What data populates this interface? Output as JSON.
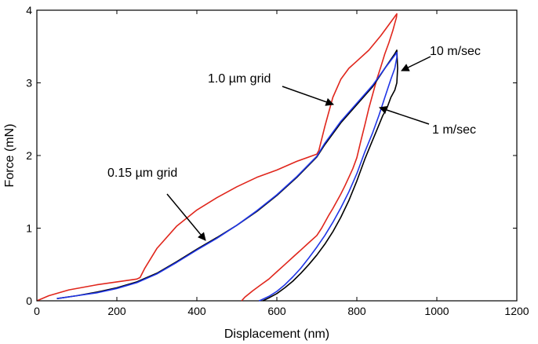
{
  "chart_data": {
    "type": "line",
    "title": "",
    "xlabel": "Displacement (nm)",
    "ylabel": "Force (mN)",
    "xlim": [
      0,
      1200
    ],
    "ylim": [
      0,
      4
    ],
    "xticks": [
      0,
      200,
      400,
      600,
      800,
      1000,
      1200
    ],
    "yticks": [
      0,
      1,
      2,
      3,
      4
    ],
    "grid": false,
    "legend": "none",
    "colors": {
      "red": "#e0261c",
      "black": "#000000",
      "blue": "#1f35e6"
    },
    "series": [
      {
        "name": "1.0 µm grid",
        "color": "#e0261c",
        "x": [
          0,
          30,
          80,
          150,
          200,
          250,
          258,
          270,
          300,
          350,
          400,
          450,
          500,
          550,
          600,
          650,
          700,
          705,
          720,
          740,
          760,
          780,
          800,
          830,
          860,
          880,
          900,
          899,
          895,
          890,
          880,
          870,
          860,
          850,
          840,
          830,
          820,
          810,
          800,
          790,
          780,
          770,
          760,
          750,
          740,
          730,
          720,
          712,
          700,
          680,
          660,
          640,
          620,
          600,
          580,
          560,
          540,
          520,
          512
        ],
        "y": [
          0,
          0.07,
          0.15,
          0.22,
          0.26,
          0.3,
          0.32,
          0.45,
          0.72,
          1.03,
          1.25,
          1.42,
          1.57,
          1.7,
          1.8,
          1.92,
          2.02,
          2.07,
          2.4,
          2.8,
          3.05,
          3.2,
          3.3,
          3.45,
          3.65,
          3.8,
          3.95,
          3.9,
          3.82,
          3.72,
          3.55,
          3.4,
          3.22,
          3.05,
          2.85,
          2.65,
          2.42,
          2.2,
          1.97,
          1.82,
          1.7,
          1.58,
          1.47,
          1.37,
          1.27,
          1.18,
          1.08,
          1.0,
          0.9,
          0.8,
          0.7,
          0.6,
          0.5,
          0.4,
          0.3,
          0.22,
          0.14,
          0.05,
          0
        ]
      },
      {
        "name": "10 m/sec",
        "color": "#000000",
        "x": [
          50,
          100,
          150,
          200,
          250,
          300,
          350,
          400,
          450,
          500,
          550,
          600,
          650,
          700,
          720,
          760,
          800,
          840,
          870,
          895,
          900,
          902,
          900,
          895,
          885,
          875,
          865,
          850,
          835,
          820,
          800,
          780,
          760,
          740,
          720,
          700,
          680,
          660,
          640,
          620,
          600,
          580,
          565
        ],
        "y": [
          0.03,
          0.07,
          0.12,
          0.18,
          0.26,
          0.38,
          0.54,
          0.71,
          0.87,
          1.04,
          1.23,
          1.45,
          1.7,
          1.98,
          2.15,
          2.45,
          2.7,
          2.95,
          3.2,
          3.4,
          3.45,
          3.2,
          3.0,
          2.9,
          2.8,
          2.65,
          2.55,
          2.35,
          2.15,
          1.95,
          1.65,
          1.38,
          1.15,
          0.95,
          0.78,
          0.63,
          0.5,
          0.38,
          0.27,
          0.18,
          0.1,
          0.04,
          0
        ]
      },
      {
        "name": "1 m/sec",
        "color": "#1f35e6",
        "x": [
          50,
          100,
          150,
          200,
          250,
          300,
          350,
          400,
          450,
          500,
          550,
          600,
          650,
          700,
          720,
          760,
          800,
          840,
          870,
          895,
          900,
          900,
          895,
          885,
          870,
          855,
          840,
          820,
          800,
          780,
          760,
          740,
          720,
          700,
          680,
          660,
          640,
          620,
          600,
          580,
          560,
          555
        ],
        "y": [
          0.03,
          0.07,
          0.11,
          0.17,
          0.25,
          0.37,
          0.53,
          0.7,
          0.86,
          1.04,
          1.24,
          1.46,
          1.71,
          1.99,
          2.17,
          2.47,
          2.72,
          2.97,
          3.2,
          3.38,
          3.42,
          3.35,
          3.2,
          3.05,
          2.8,
          2.55,
          2.32,
          2.05,
          1.75,
          1.5,
          1.28,
          1.08,
          0.9,
          0.74,
          0.59,
          0.45,
          0.33,
          0.22,
          0.13,
          0.06,
          0.01,
          0
        ]
      }
    ],
    "annotations": [
      {
        "id": "grid-15",
        "text": "0.15 µm grid",
        "target": [
          425,
          0.82
        ]
      },
      {
        "id": "grid-10",
        "text": "1.0 µm grid",
        "target": [
          755,
          2.68
        ]
      },
      {
        "id": "speed-10",
        "text": "10 m/sec",
        "target": [
          900,
          3.15
        ]
      },
      {
        "id": "speed-1",
        "text": "1 m/sec",
        "target": [
          845,
          2.68
        ]
      }
    ]
  }
}
